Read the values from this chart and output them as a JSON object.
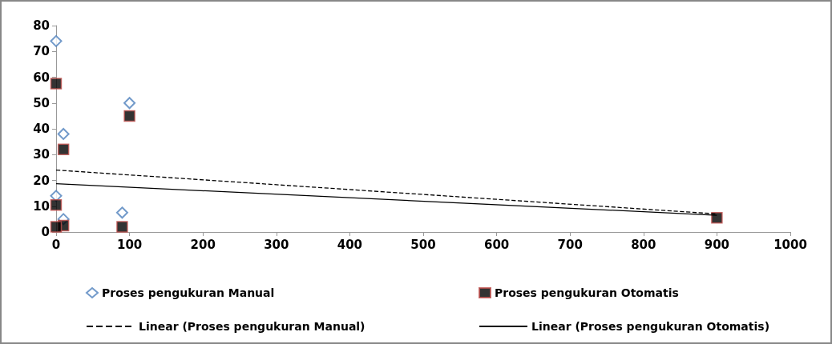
{
  "chart_data": {
    "type": "scatter",
    "xlim": [
      0,
      1000
    ],
    "xticks": [
      0,
      100,
      200,
      300,
      400,
      500,
      600,
      700,
      800,
      900,
      1000
    ],
    "ylim": [
      0,
      80
    ],
    "yticks": [
      0,
      10,
      20,
      30,
      40,
      50,
      60,
      70,
      80
    ],
    "grid": false,
    "legend": "bottom",
    "series": [
      {
        "name": "Proses pengukuran Manual",
        "marker": "diamond",
        "color": "#4f81bd",
        "x": [
          0,
          0,
          10,
          100,
          90,
          10
        ],
        "values": [
          74,
          14,
          38,
          50,
          7.5,
          5
        ]
      },
      {
        "name": "Proses pengukuran Otomatis",
        "marker": "square",
        "color": "#000000",
        "x": [
          0,
          0,
          10,
          100,
          90,
          10,
          0,
          900
        ],
        "values": [
          57.5,
          10.5,
          32,
          45,
          2,
          2.5,
          2,
          5.5
        ]
      },
      {
        "name": "Linear (Proses pengukuran Manual)",
        "type": "line",
        "marker": "none",
        "line_style": "dashed",
        "color": "#000000",
        "x": [
          0,
          900
        ],
        "values": [
          24,
          7
        ]
      },
      {
        "name": "Linear (Proses pengukuran Otomatis)",
        "type": "line",
        "marker": "none",
        "line_style": "solid",
        "color": "#000000",
        "x": [
          0,
          900
        ],
        "values": [
          18.7,
          6.5
        ]
      }
    ]
  }
}
